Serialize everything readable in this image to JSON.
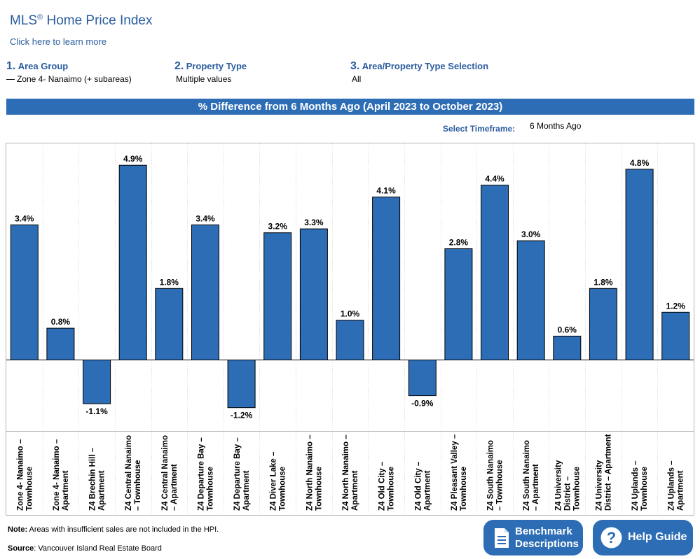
{
  "header": {
    "title": "MLS",
    "title_mark": "®",
    "title_rest": " Home Price Index",
    "learn_more": "Click here to learn more"
  },
  "filters": [
    {
      "num": "1.",
      "label": "Area Group",
      "value": "Zone 4- Nanaimo (+ subareas)"
    },
    {
      "num": "2.",
      "label": "Property Type",
      "value": "Multiple values"
    },
    {
      "num": "3.",
      "label": "Area/Property Type Selection",
      "value": "All"
    }
  ],
  "banner": "% Difference from 6 Months Ago (April 2023 to October 2023)",
  "timeframe": {
    "label": "Select Timeframe:",
    "value": "6 Months Ago"
  },
  "chart_data": {
    "type": "bar",
    "title": "% Difference from 6 Months Ago (April 2023 to October 2023)",
    "categories": [
      [
        "Zone 4- Nanaimo –",
        "Townhouse"
      ],
      [
        "Zone 4- Nanaimo –",
        "Apartment"
      ],
      [
        "Z4 Brechin Hill –",
        "Apartment"
      ],
      [
        "Z4 Central Nanaimo",
        "– Townhouse"
      ],
      [
        "Z4 Central Nanaimo",
        "– Apartment"
      ],
      [
        "Z4 Departure Bay –",
        "Townhouse"
      ],
      [
        "Z4 Departure Bay –",
        "Apartment"
      ],
      [
        "Z4 Diver Lake –",
        "Townhouse"
      ],
      [
        "Z4 North Nanaimo –",
        "Townhouse"
      ],
      [
        "Z4 North Nanaimo –",
        "Apartment"
      ],
      [
        "Z4 Old City –",
        "Townhouse"
      ],
      [
        "Z4 Old City –",
        "Apartment"
      ],
      [
        "Z4 Pleasant Valley –",
        "Townhouse"
      ],
      [
        "Z4 South Nanaimo",
        "– Townhouse"
      ],
      [
        "Z4 South Nanaimo",
        "– Apartment"
      ],
      [
        "Z4 University",
        "District –",
        "Townhouse"
      ],
      [
        "Z4 University",
        "District – Apartment"
      ],
      [
        "Z4 Uplands –",
        "Townhouse"
      ],
      [
        "Z4 Uplands –",
        "Apartment"
      ]
    ],
    "values": [
      3.4,
      0.8,
      -1.1,
      4.9,
      1.8,
      3.4,
      -1.2,
      3.2,
      3.3,
      1.0,
      4.1,
      -0.9,
      2.8,
      4.4,
      3.0,
      0.6,
      1.8,
      4.8,
      1.2
    ],
    "labels": [
      "3.4%",
      "0.8%",
      "-1.1%",
      "4.9%",
      "1.8%",
      "3.4%",
      "-1.2%",
      "3.2%",
      "3.3%",
      "1.0%",
      "4.1%",
      "-0.9%",
      "2.8%",
      "4.4%",
      "3.0%",
      "0.6%",
      "1.8%",
      "4.8%",
      "1.2%"
    ],
    "ylim": [
      -1.8,
      5.5
    ],
    "bar_color": "#2d6db5",
    "grid": false
  },
  "footer": {
    "note_label": "Note:",
    "note_text": " Areas with insufficient sales are not included in the HPI.",
    "source_label": "Source",
    "source_text": ": Vancouver Island Real Estate Board"
  },
  "buttons": {
    "benchmark_line1": "Benchmark",
    "benchmark_line2": "Descriptions",
    "help": "Help Guide"
  },
  "colors": {
    "accent": "#2a5c9e",
    "bar": "#2d6db5",
    "banner": "#2d6db5"
  },
  "icons": {
    "benchmark": "document-icon",
    "help": "question-circle-icon"
  }
}
